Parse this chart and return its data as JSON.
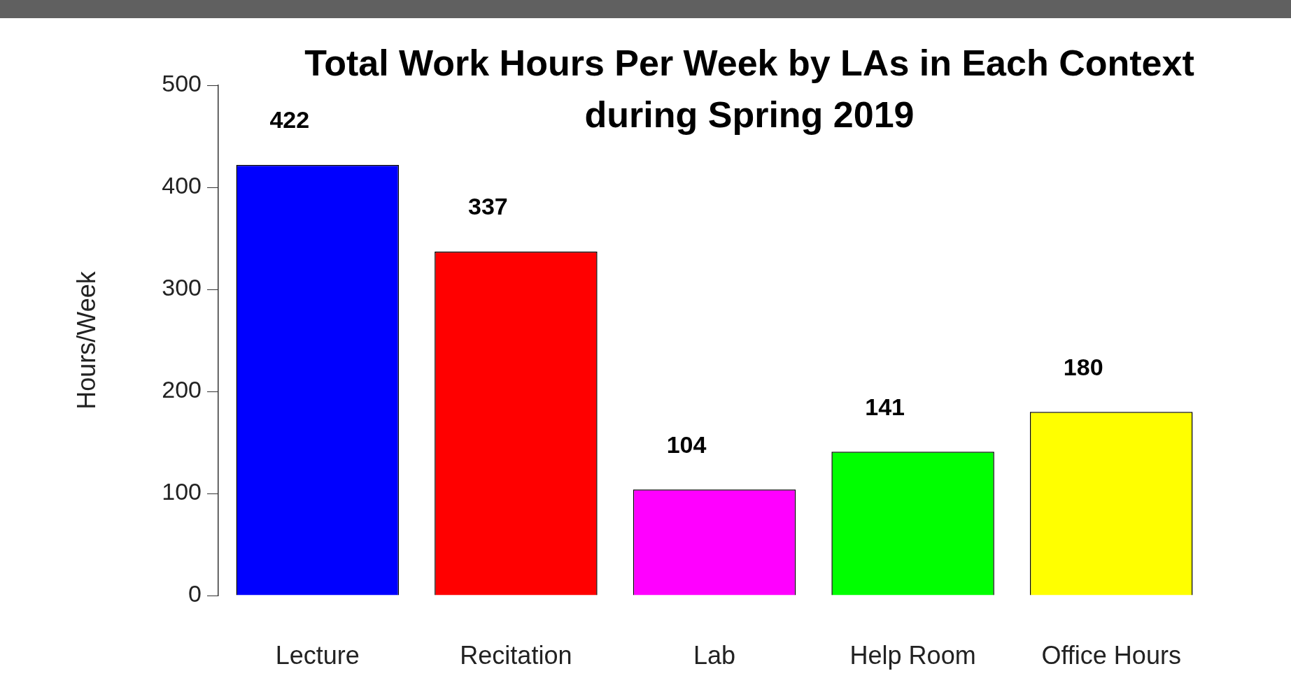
{
  "chart_data": {
    "type": "bar",
    "title": "Total Work Hours Per Week by LAs in Each Context during Spring 2019",
    "ylabel": "Hours/Week",
    "categories": [
      "Lecture",
      "Recitation",
      "Lab",
      "Help Room",
      "Office Hours"
    ],
    "values": [
      422,
      337,
      104,
      141,
      180
    ],
    "colors": [
      "#0000ff",
      "#ff0000",
      "#ff00ff",
      "#00ff00",
      "#ffff00"
    ],
    "ylim": [
      0,
      500
    ],
    "yticks": [
      0,
      100,
      200,
      300,
      400,
      500
    ],
    "data_labels": true
  }
}
